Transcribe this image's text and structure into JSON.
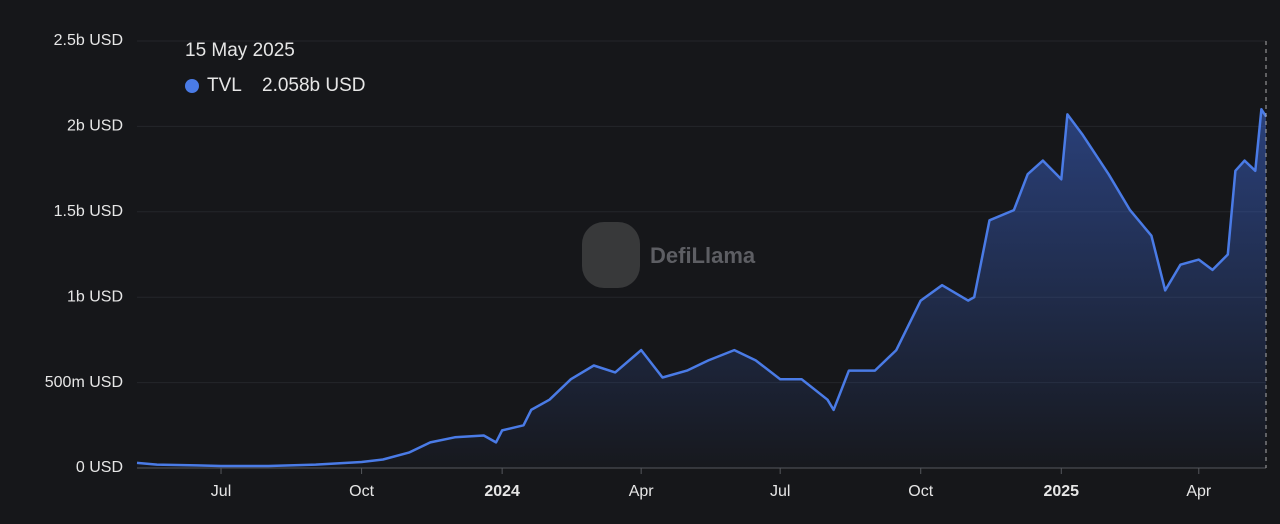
{
  "chart_data": {
    "type": "area",
    "x": [
      "2023-05-07",
      "2023-05-20",
      "2023-06-15",
      "2023-07-01",
      "2023-08-01",
      "2023-09-01",
      "2023-10-01",
      "2023-10-15",
      "2023-11-01",
      "2023-11-15",
      "2023-12-01",
      "2023-12-20",
      "2023-12-28",
      "2024-01-01",
      "2024-01-15",
      "2024-01-20",
      "2024-02-01",
      "2024-02-15",
      "2024-03-01",
      "2024-03-15",
      "2024-04-01",
      "2024-04-15",
      "2024-05-01",
      "2024-05-15",
      "2024-06-01",
      "2024-06-15",
      "2024-07-01",
      "2024-07-15",
      "2024-08-01",
      "2024-08-05",
      "2024-08-15",
      "2024-09-01",
      "2024-09-15",
      "2024-10-01",
      "2024-10-15",
      "2024-11-01",
      "2024-11-05",
      "2024-11-15",
      "2024-12-01",
      "2024-12-10",
      "2024-12-20",
      "2025-01-01",
      "2025-01-05",
      "2025-01-15",
      "2025-02-01",
      "2025-02-15",
      "2025-03-01",
      "2025-03-10",
      "2025-03-20",
      "2025-04-01",
      "2025-04-10",
      "2025-04-20",
      "2025-04-25",
      "2025-05-01",
      "2025-05-08",
      "2025-05-12",
      "2025-05-15"
    ],
    "series": [
      {
        "name": "TVL",
        "color": "#4a7be6",
        "values": [
          30000000,
          20000000,
          15000000,
          12000000,
          12000000,
          20000000,
          35000000,
          50000000,
          90000000,
          150000000,
          180000000,
          190000000,
          150000000,
          220000000,
          250000000,
          340000000,
          400000000,
          520000000,
          600000000,
          560000000,
          690000000,
          530000000,
          570000000,
          630000000,
          690000000,
          630000000,
          520000000,
          520000000,
          400000000,
          340000000,
          570000000,
          570000000,
          690000000,
          980000000,
          1070000000,
          980000000,
          1000000000,
          1450000000,
          1510000000,
          1720000000,
          1800000000,
          1690000000,
          2070000000,
          1950000000,
          1720000000,
          1510000000,
          1360000000,
          1040000000,
          1190000000,
          1220000000,
          1160000000,
          1250000000,
          1740000000,
          1800000000,
          1740000000,
          2100000000,
          2058000000
        ]
      }
    ],
    "xlim": [
      "2023-05-07",
      "2025-05-15"
    ],
    "xticks": [
      {
        "value": "2023-07-01",
        "label": "Jul"
      },
      {
        "value": "2023-10-01",
        "label": "Oct"
      },
      {
        "value": "2024-01-01",
        "label": "2024"
      },
      {
        "value": "2024-04-01",
        "label": "Apr"
      },
      {
        "value": "2024-07-01",
        "label": "Jul"
      },
      {
        "value": "2024-10-01",
        "label": "Oct"
      },
      {
        "value": "2025-01-01",
        "label": "2025"
      },
      {
        "value": "2025-04-01",
        "label": "Apr"
      }
    ],
    "ylim": [
      0,
      2500000000
    ],
    "yticks": [
      {
        "value": 0,
        "label": "0 USD"
      },
      {
        "value": 500000000,
        "label": "500m USD"
      },
      {
        "value": 1000000000,
        "label": "1b USD"
      },
      {
        "value": 1500000000,
        "label": "1.5b USD"
      },
      {
        "value": 2000000000,
        "label": "2b USD"
      },
      {
        "value": 2500000000,
        "label": "2.5b USD"
      }
    ],
    "grid": true,
    "tooltip": {
      "date": "15 May 2025",
      "value_label": "2.058b USD"
    },
    "watermark": "DefiLlama"
  }
}
